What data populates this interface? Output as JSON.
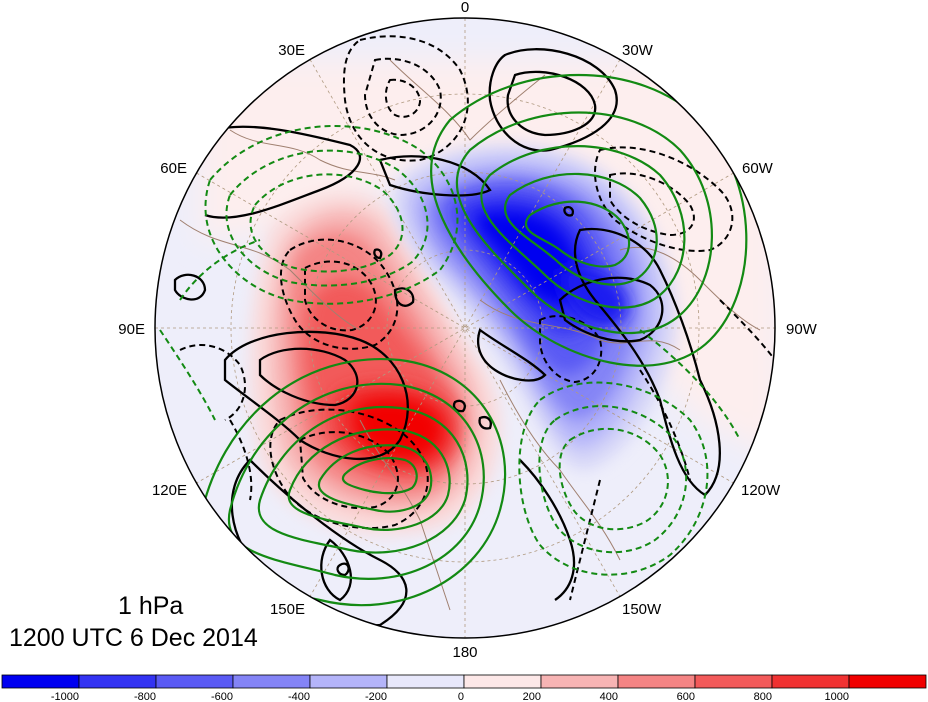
{
  "map": {
    "projection": "north polar stereographic",
    "longitude_labels": [
      "0",
      "30W",
      "60W",
      "90W",
      "120W",
      "150W",
      "180",
      "150E",
      "120E",
      "90E",
      "60E",
      "30E"
    ]
  },
  "caption": {
    "level": "1 hPa",
    "datetime": "1200 UTC 6 Dec 2014"
  },
  "colorbar": {
    "ticks": [
      "-1000",
      "-800",
      "-600",
      "-400",
      "-200",
      "0",
      "200",
      "400",
      "600",
      "800",
      "1000"
    ],
    "colors": [
      "#0000f0",
      "#3333f2",
      "#5a5af4",
      "#8484f6",
      "#b4b4f9",
      "#e8e8fb",
      "#fde8e8",
      "#f7b4b4",
      "#f48484",
      "#f25a5a",
      "#f03232",
      "#f00000"
    ]
  },
  "colors": {
    "positive_fill": "#f00000",
    "negative_fill": "#0000f0",
    "black_contour": "#000000",
    "green_contour": "#138a13",
    "coastline": "#a08070",
    "grid": "#b09a80"
  }
}
